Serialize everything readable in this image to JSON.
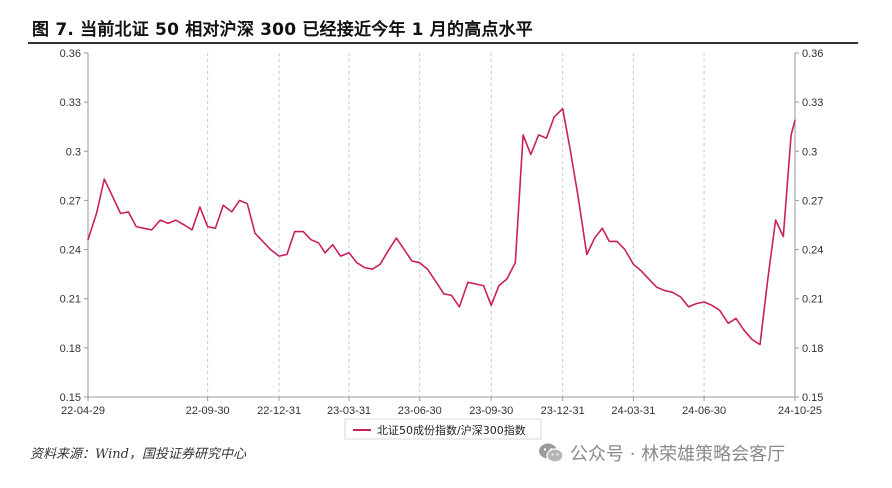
{
  "title": "图 7. 当前北证 50 相对沪深 300 已经接近今年 1 月的高点水平",
  "source": "资料来源：Wind，国投证券研究中心",
  "watermark": {
    "icon": "wechat-icon",
    "text": "公众号 · 林荣雄策略会客厅"
  },
  "chart_data": {
    "type": "line",
    "title": "",
    "xlabel": "",
    "ylabel": "",
    "ylim": [
      0.15,
      0.36
    ],
    "yticks": [
      "0.15",
      "0.18",
      "0.21",
      "0.24",
      "0.27",
      "0.3",
      "0.33",
      "0.36"
    ],
    "xticks": [
      "22-04-29",
      "22-09-30",
      "22-12-31",
      "23-03-31",
      "23-06-30",
      "23-09-30",
      "23-12-31",
      "24-03-31",
      "24-06-30",
      "24-10-25"
    ],
    "grid": true,
    "legend_position": "bottom",
    "series": [
      {
        "name": "北证50成份指数/沪深300指数",
        "color": "#c8215e",
        "x": [
          "2022-04-29",
          "2022-05-10",
          "2022-05-20",
          "2022-05-31",
          "2022-06-10",
          "2022-06-20",
          "2022-06-30",
          "2022-07-10",
          "2022-07-20",
          "2022-07-31",
          "2022-08-10",
          "2022-08-20",
          "2022-08-31",
          "2022-09-10",
          "2022-09-20",
          "2022-09-30",
          "2022-10-10",
          "2022-10-20",
          "2022-10-31",
          "2022-11-10",
          "2022-11-20",
          "2022-11-30",
          "2022-12-10",
          "2022-12-20",
          "2022-12-31",
          "2023-01-10",
          "2023-01-20",
          "2023-01-31",
          "2023-02-10",
          "2023-02-20",
          "2023-02-28",
          "2023-03-10",
          "2023-03-20",
          "2023-03-31",
          "2023-04-10",
          "2023-04-20",
          "2023-04-30",
          "2023-05-10",
          "2023-05-20",
          "2023-05-31",
          "2023-06-10",
          "2023-06-20",
          "2023-06-30",
          "2023-07-10",
          "2023-07-20",
          "2023-07-31",
          "2023-08-10",
          "2023-08-20",
          "2023-08-31",
          "2023-09-10",
          "2023-09-20",
          "2023-09-30",
          "2023-10-10",
          "2023-10-20",
          "2023-10-31",
          "2023-11-10",
          "2023-11-20",
          "2023-11-30",
          "2023-12-10",
          "2023-12-20",
          "2023-12-31",
          "2024-01-10",
          "2024-01-20",
          "2024-01-31",
          "2024-02-10",
          "2024-02-20",
          "2024-02-29",
          "2024-03-10",
          "2024-03-20",
          "2024-03-31",
          "2024-04-10",
          "2024-04-20",
          "2024-04-30",
          "2024-05-10",
          "2024-05-20",
          "2024-05-31",
          "2024-06-10",
          "2024-06-20",
          "2024-06-30",
          "2024-07-10",
          "2024-07-20",
          "2024-07-31",
          "2024-08-10",
          "2024-08-20",
          "2024-08-31",
          "2024-09-10",
          "2024-09-20",
          "2024-09-30",
          "2024-10-10",
          "2024-10-20",
          "2024-10-25"
        ],
        "values": [
          0.246,
          0.262,
          0.283,
          0.272,
          0.262,
          0.263,
          0.254,
          0.253,
          0.252,
          0.258,
          0.256,
          0.258,
          0.255,
          0.252,
          0.266,
          0.254,
          0.253,
          0.267,
          0.263,
          0.27,
          0.268,
          0.25,
          0.245,
          0.24,
          0.236,
          0.237,
          0.251,
          0.251,
          0.246,
          0.244,
          0.238,
          0.243,
          0.236,
          0.238,
          0.232,
          0.229,
          0.228,
          0.231,
          0.239,
          0.247,
          0.24,
          0.233,
          0.232,
          0.228,
          0.221,
          0.213,
          0.212,
          0.205,
          0.22,
          0.219,
          0.218,
          0.206,
          0.218,
          0.222,
          0.232,
          0.31,
          0.298,
          0.31,
          0.308,
          0.321,
          0.326,
          0.3,
          0.272,
          0.237,
          0.247,
          0.253,
          0.245,
          0.245,
          0.24,
          0.231,
          0.227,
          0.222,
          0.217,
          0.215,
          0.214,
          0.211,
          0.205,
          0.207,
          0.208,
          0.206,
          0.203,
          0.195,
          0.198,
          0.191,
          0.185,
          0.182,
          0.222,
          0.258,
          0.248,
          0.31,
          0.319
        ]
      }
    ]
  }
}
